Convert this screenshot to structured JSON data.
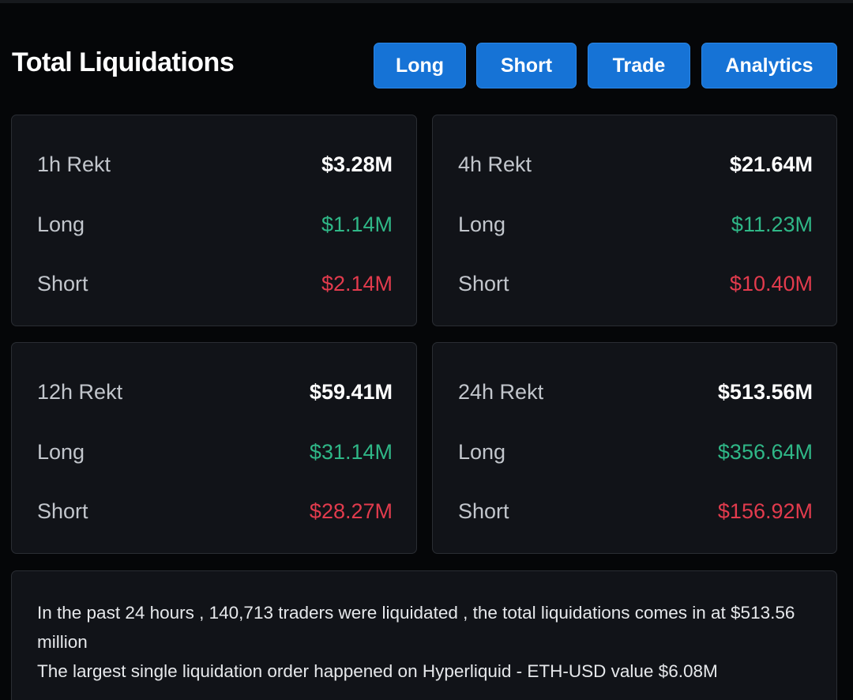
{
  "header": {
    "title": "Total Liquidations",
    "buttons": {
      "long": "Long",
      "short": "Short",
      "trade": "Trade",
      "analytics": "Analytics"
    }
  },
  "cards": {
    "h1": {
      "label": "1h Rekt",
      "total": "$3.28M",
      "long_label": "Long",
      "long": "$1.14M",
      "short_label": "Short",
      "short": "$2.14M"
    },
    "h4": {
      "label": "4h Rekt",
      "total": "$21.64M",
      "long_label": "Long",
      "long": "$11.23M",
      "short_label": "Short",
      "short": "$10.40M"
    },
    "h12": {
      "label": "12h Rekt",
      "total": "$59.41M",
      "long_label": "Long",
      "long": "$31.14M",
      "short_label": "Short",
      "short": "$28.27M"
    },
    "h24": {
      "label": "24h Rekt",
      "total": "$513.56M",
      "long_label": "Long",
      "long": "$356.64M",
      "short_label": "Short",
      "short": "$156.92M"
    }
  },
  "summary": {
    "line1": "In the past 24 hours , 140,713 traders were liquidated , the total liquidations comes in at $513.56 million",
    "line2": "The largest single liquidation order happened on Hyperliquid - ETH-USD value $6.08M"
  },
  "colors": {
    "accent": "#1673d6",
    "long": "#2fb787",
    "short": "#e23b4d",
    "background": "#050608",
    "card": "#111318"
  }
}
